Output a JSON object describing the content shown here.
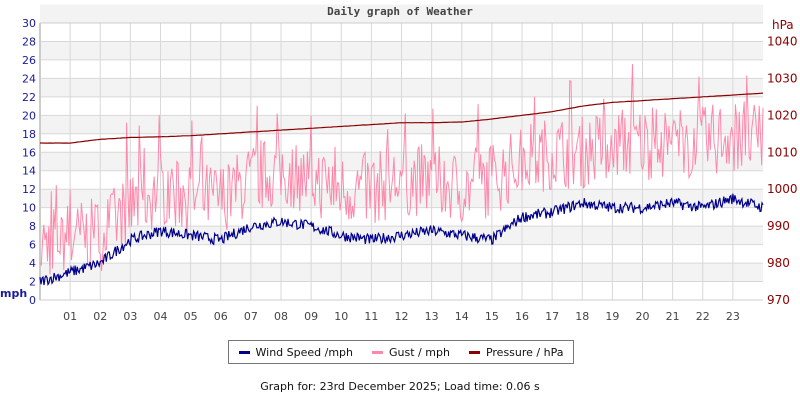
{
  "chart_data": {
    "type": "line",
    "title": "Daily graph of Weather",
    "ylabel_left": "mph",
    "ylabel_right": "hPa",
    "ylim_left": [
      0,
      30
    ],
    "ylim_right": [
      970,
      1045
    ],
    "yticks_left": [
      "0",
      "2",
      "4",
      "6",
      "8",
      "10",
      "12",
      "14",
      "16",
      "18",
      "20",
      "22",
      "24",
      "26",
      "28",
      "30"
    ],
    "yticks_right": [
      "970",
      "980",
      "990",
      "1000",
      "1010",
      "1020",
      "1030",
      "1040"
    ],
    "xticks": [
      "01",
      "02",
      "03",
      "04",
      "05",
      "06",
      "07",
      "08",
      "09",
      "10",
      "11",
      "12",
      "13",
      "14",
      "15",
      "16",
      "17",
      "18",
      "19",
      "20",
      "21",
      "22",
      "23"
    ],
    "x_hours": [
      0,
      1,
      2,
      3,
      4,
      5,
      6,
      7,
      8,
      9,
      10,
      11,
      12,
      13,
      14,
      15,
      16,
      17,
      18,
      19,
      20,
      21,
      22,
      23,
      24
    ],
    "grid": true,
    "legend_position": "bottom",
    "series": [
      {
        "name": "Wind Speed /mph",
        "color": "#00008b",
        "axis": "left",
        "values": [
          2,
          3,
          4,
          6.5,
          7.5,
          7,
          6.5,
          8,
          8.5,
          8,
          7,
          6.5,
          7,
          7.5,
          7,
          6.5,
          9,
          9.5,
          10.5,
          10,
          10,
          10.5,
          10,
          11,
          10
        ]
      },
      {
        "name": "Gust / mph",
        "color": "#ff88aa",
        "axis": "left",
        "values": [
          6,
          7,
          7,
          10,
          12,
          11,
          11,
          13,
          14,
          13,
          12,
          12,
          13,
          13,
          12,
          13,
          15,
          16,
          16,
          17,
          17,
          17,
          17,
          18,
          17
        ]
      },
      {
        "name": "Pressure / hPa",
        "color": "#8b0000",
        "axis": "right",
        "values": [
          1012.5,
          1012.5,
          1013.5,
          1014,
          1014.2,
          1014.5,
          1015,
          1015.5,
          1016,
          1016.5,
          1017,
          1017.5,
          1018,
          1018,
          1018.2,
          1019,
          1020,
          1021,
          1022.5,
          1023.5,
          1024,
          1024.5,
          1025,
          1025.5,
          1026
        ]
      }
    ]
  },
  "footer": "Graph for: 23rd December 2025; Load time: 0.06 s"
}
